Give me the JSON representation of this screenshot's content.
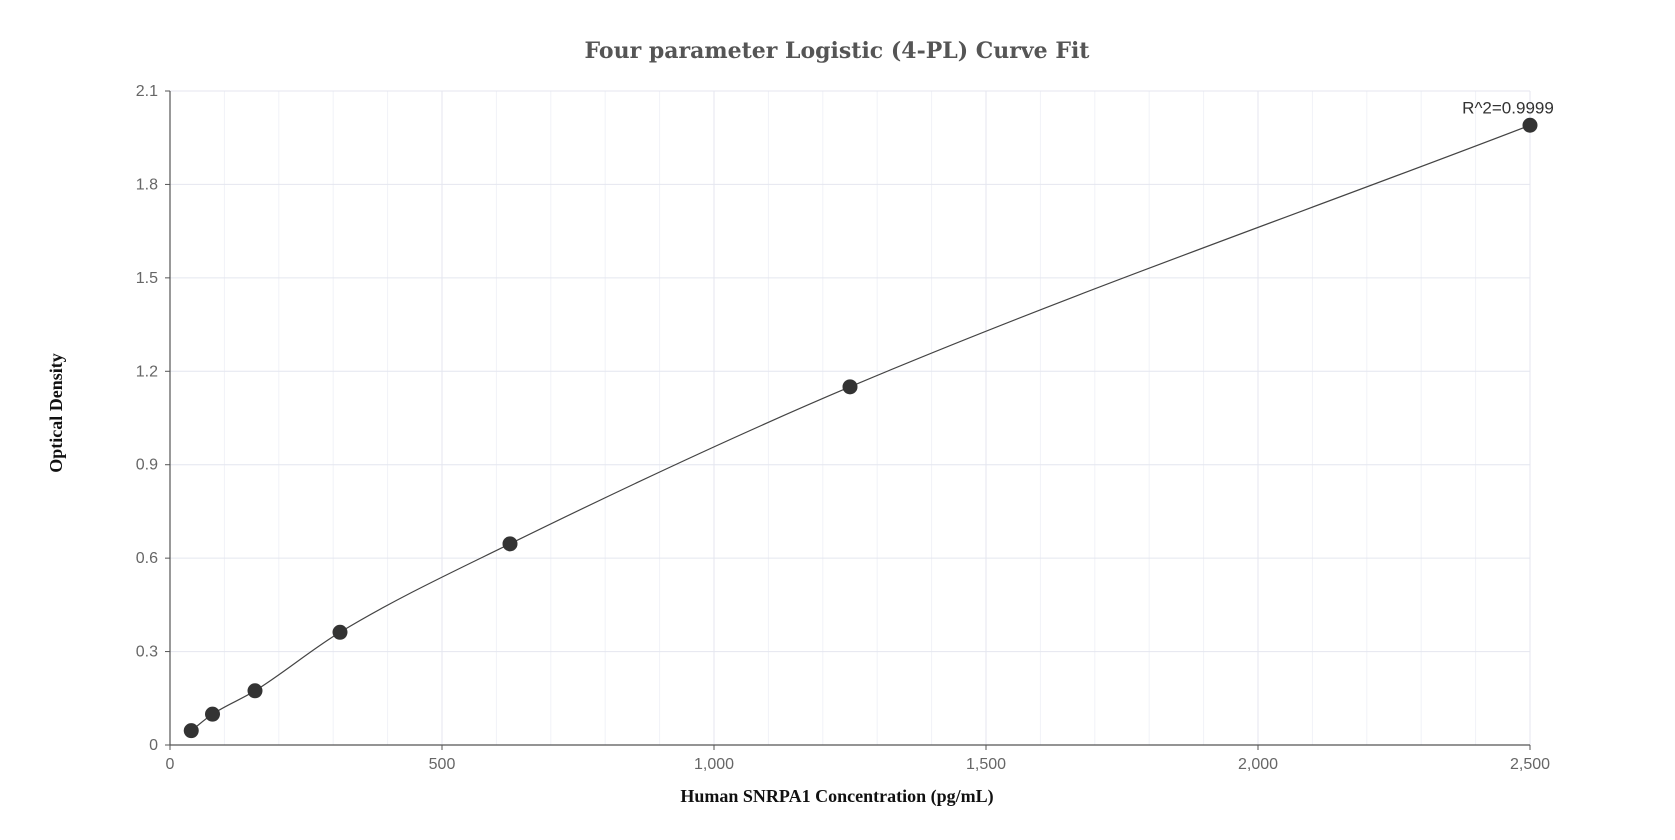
{
  "chart_data": {
    "type": "scatter",
    "title": "Four parameter Logistic (4-PL) Curve Fit",
    "xlabel": "Human SNRPA1 Concentration (pg/mL)",
    "ylabel": "Optical Density",
    "xlim": [
      0,
      2500
    ],
    "ylim": [
      0,
      2.1
    ],
    "x_ticks": [
      0,
      500,
      1000,
      1500,
      2000,
      2500
    ],
    "x_tick_labels": [
      "0",
      "500",
      "1,000",
      "1,500",
      "2,000",
      "2,500"
    ],
    "y_ticks": [
      0,
      0.3,
      0.6,
      0.9,
      1.2,
      1.5,
      1.8,
      2.1
    ],
    "y_tick_labels": [
      "0",
      "0.3",
      "0.6",
      "0.9",
      "1.2",
      "1.5",
      "1.8",
      "2.1"
    ],
    "grid": true,
    "points": [
      {
        "x": 39.06,
        "y": 0.046
      },
      {
        "x": 78.13,
        "y": 0.099
      },
      {
        "x": 156.25,
        "y": 0.174
      },
      {
        "x": 312.5,
        "y": 0.362
      },
      {
        "x": 625,
        "y": 0.646
      },
      {
        "x": 1250,
        "y": 1.15
      },
      {
        "x": 2500,
        "y": 1.99
      }
    ],
    "annotation": "R^2=0.9999",
    "colors": {
      "points": "#333333",
      "curve": "#444444",
      "grid": "#e4e6ef",
      "minor_grid": "#f1f2f7",
      "axis": "#555555"
    }
  }
}
